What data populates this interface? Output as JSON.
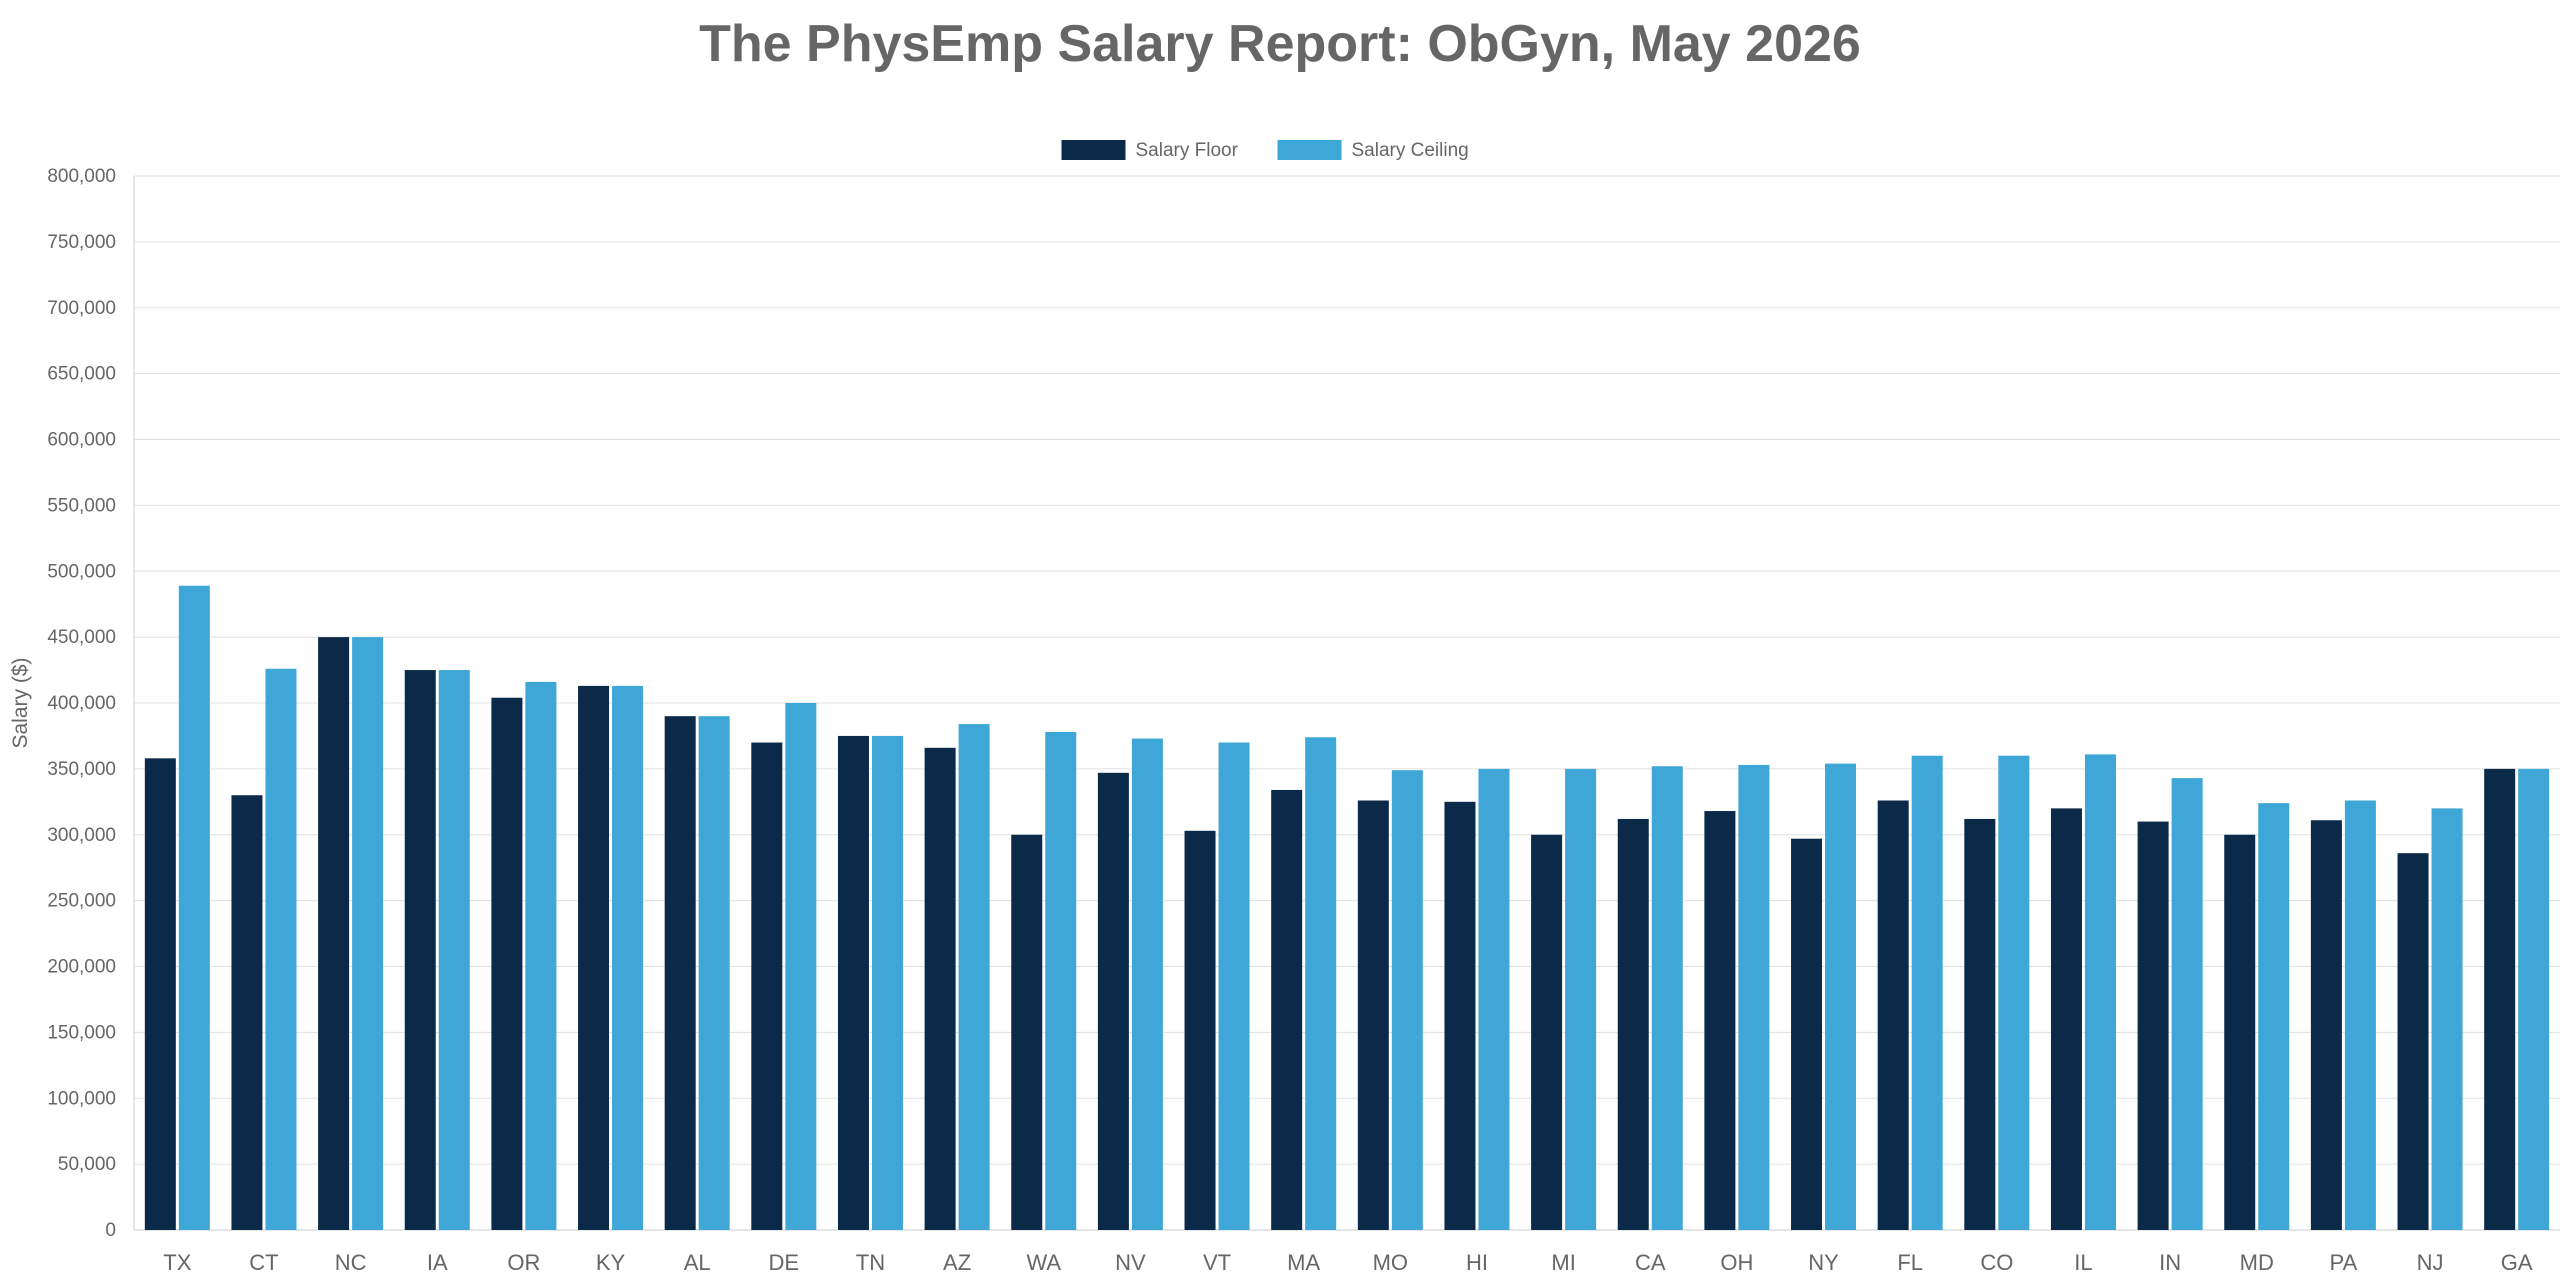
{
  "chart_data": {
    "type": "bar",
    "title": "The PhysEmp Salary Report: ObGyn, May 2026",
    "xlabel": "",
    "ylabel": "Salary ($)",
    "ylim": [
      0,
      800000
    ],
    "yticks": [
      0,
      50000,
      100000,
      150000,
      200000,
      250000,
      300000,
      350000,
      400000,
      450000,
      500000,
      550000,
      600000,
      650000,
      700000,
      750000,
      800000
    ],
    "ytick_labels": [
      "0",
      "50,000",
      "100,000",
      "150,000",
      "200,000",
      "250,000",
      "300,000",
      "350,000",
      "400,000",
      "450,000",
      "500,000",
      "550,000",
      "600,000",
      "650,000",
      "700,000",
      "750,000",
      "800,000"
    ],
    "grid": true,
    "legend_position": "top-center",
    "categories": [
      "TX",
      "CT",
      "NC",
      "IA",
      "OR",
      "KY",
      "AL",
      "DE",
      "TN",
      "AZ",
      "WA",
      "NV",
      "VT",
      "MA",
      "MO",
      "HI",
      "MI",
      "CA",
      "OH",
      "NY",
      "FL",
      "CO",
      "IL",
      "IN",
      "MD",
      "PA",
      "NJ",
      "GA"
    ],
    "series": [
      {
        "name": "Salary Floor",
        "color": "#0b2a4a",
        "values": [
          358000,
          330000,
          450000,
          425000,
          404000,
          413000,
          390000,
          370000,
          375000,
          366000,
          300000,
          347000,
          303000,
          334000,
          326000,
          325000,
          300000,
          312000,
          318000,
          297000,
          326000,
          312000,
          320000,
          310000,
          300000,
          311000,
          286000,
          350000
        ]
      },
      {
        "name": "Salary Ceiling",
        "color": "#3fa7d8",
        "values": [
          489000,
          426000,
          450000,
          425000,
          416000,
          413000,
          390000,
          400000,
          375000,
          384000,
          378000,
          373000,
          370000,
          374000,
          349000,
          350000,
          350000,
          352000,
          353000,
          354000,
          360000,
          360000,
          361000,
          343000,
          324000,
          326000,
          320000,
          350000
        ]
      }
    ],
    "colors": {
      "text": "#666666",
      "grid": "#e0e0e0",
      "axis": "#cccccc"
    }
  }
}
